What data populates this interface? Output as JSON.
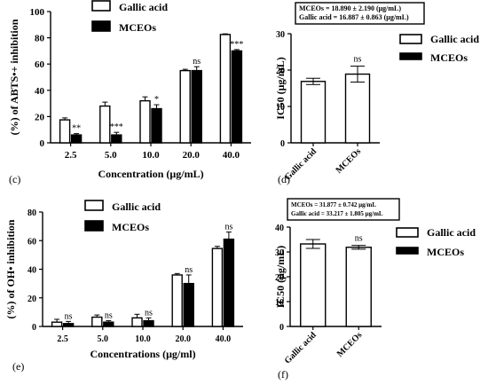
{
  "panels": [
    {
      "letter": "(c)",
      "chart_data": {
        "type": "bar",
        "categories": [
          "2.5",
          "5.0",
          "10.0",
          "20.0",
          "40.0"
        ],
        "series": [
          {
            "name": "Gallic acid",
            "values": [
              17.5,
              28,
              32,
              55,
              82.5
            ],
            "errors": [
              1.5,
              3,
              3,
              1,
              0.5
            ]
          },
          {
            "name": "MCEOs",
            "values": [
              6,
              6,
              26,
              55,
              70
            ],
            "errors": [
              1,
              2,
              3,
              3,
              1
            ]
          }
        ],
        "significance": [
          "**",
          "***",
          "*",
          "ns",
          "***"
        ],
        "xlabel": "Concentration (μg/mL)",
        "ylabel": "(%) of ABTS•+ inhibition",
        "ylim": [
          0,
          100
        ],
        "yticks": [
          0,
          20,
          40,
          60,
          80,
          100
        ],
        "legend_position": "top-left"
      }
    },
    {
      "letter": "(d)",
      "chart_data": {
        "type": "bar",
        "categories": [
          "Gallic acid",
          "MCEOs"
        ],
        "values": [
          16.887,
          18.89
        ],
        "errors": [
          0.863,
          2.19
        ],
        "significance": [
          "ns"
        ],
        "ylabel": "IC50 (μg/mL)",
        "ylim": [
          0,
          30
        ],
        "yticks": [
          0,
          10,
          20,
          30
        ],
        "annotation_lines": [
          "MCEOs = 18.890 ± 2.190 (μg/mL)",
          "Gallic acid = 16.887 ± 0.863 (μg/mL)"
        ],
        "legend": [
          "Gallic acid",
          "MCEOs"
        ],
        "legend_position": "right"
      }
    },
    {
      "letter": "(e)",
      "chart_data": {
        "type": "bar",
        "categories": [
          "2.5",
          "5.0",
          "10.0",
          "20.0",
          "40.0"
        ],
        "series": [
          {
            "name": "Gallic acid",
            "values": [
              3,
              6.5,
              6,
              36,
              54.5
            ],
            "errors": [
              2,
              1.5,
              2.5,
              1,
              1.5
            ]
          },
          {
            "name": "MCEOs",
            "values": [
              2,
              3,
              4,
              30,
              61
            ],
            "errors": [
              1.5,
              1,
              2,
              6,
              5
            ]
          }
        ],
        "significance": [
          "ns",
          "ns",
          "ns",
          "ns",
          "ns"
        ],
        "xlabel": "Concentrations (μg/ml)",
        "ylabel": "(%) of OH• inhibition",
        "ylim": [
          0,
          80
        ],
        "yticks": [
          0,
          20,
          40,
          60,
          80
        ],
        "legend_position": "top-left"
      }
    },
    {
      "letter": "(f)",
      "chart_data": {
        "type": "bar",
        "categories": [
          "Gallic acid",
          "MCEOs"
        ],
        "values": [
          33.217,
          31.877
        ],
        "errors": [
          1.805,
          0.742
        ],
        "significance": [
          "ns"
        ],
        "ylabel": "IC50 (μg/mL)",
        "ylim": [
          0,
          40
        ],
        "yticks": [
          0,
          10,
          20,
          30,
          40
        ],
        "annotation_lines": [
          "MCEOs = 31.877 ± 0.742 μg/mL",
          "Gallic acid = 33.217 ± 1.805 μg/mL"
        ],
        "legend": [
          "Gallic acid",
          "MCEOs"
        ],
        "legend_position": "right"
      }
    }
  ]
}
